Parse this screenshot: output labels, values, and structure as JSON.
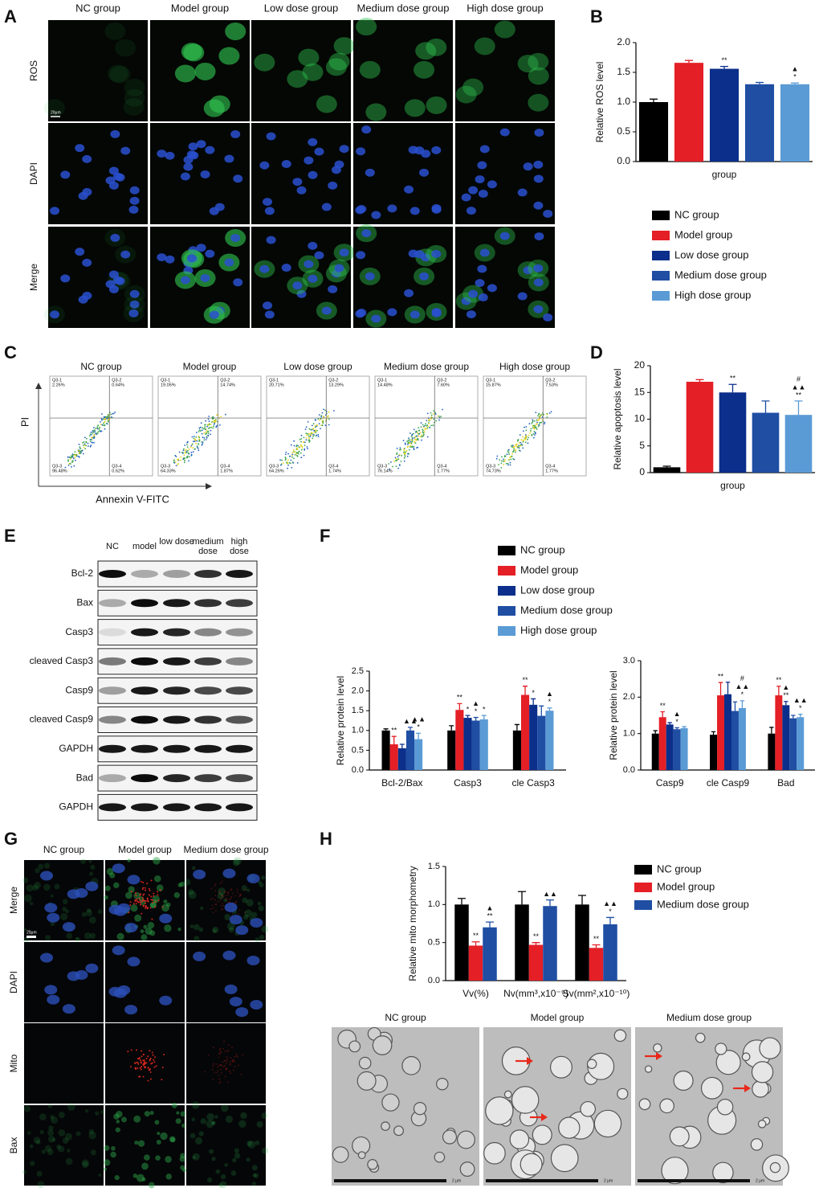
{
  "panel_labels": [
    "A",
    "B",
    "C",
    "D",
    "E",
    "F",
    "G",
    "H"
  ],
  "panel_A": {
    "columns": [
      "NC group",
      "Model group",
      "Low dose group",
      "Medium dose group",
      "High dose group"
    ],
    "rows": [
      "ROS",
      "DAPI",
      "Merge"
    ],
    "scale_bar": "20μm"
  },
  "panel_C": {
    "y_axis": "PI",
    "x_axis": "Annexin V-FITC",
    "plots": [
      {
        "title": "NC group",
        "quadrants": [
          {
            "name": "Q3-1",
            "pct": "2.26%"
          },
          {
            "name": "Q3-2",
            "pct": "0.64%"
          },
          {
            "name": "Q3-3",
            "pct": "96.48%"
          },
          {
            "name": "Q3-4",
            "pct": "0.62%"
          }
        ]
      },
      {
        "title": "Model group",
        "quadrants": [
          {
            "name": "Q3-1",
            "pct": "19.05%"
          },
          {
            "name": "Q3-2",
            "pct": "14.74%"
          },
          {
            "name": "Q3-3",
            "pct": "64.33%"
          },
          {
            "name": "Q3-4",
            "pct": "1.87%"
          }
        ]
      },
      {
        "title": "Low dose group",
        "quadrants": [
          {
            "name": "Q3-1",
            "pct": "20.71%"
          },
          {
            "name": "Q3-2",
            "pct": "13.29%"
          },
          {
            "name": "Q3-3",
            "pct": "64.26%"
          },
          {
            "name": "Q3-4",
            "pct": "1.74%"
          }
        ]
      },
      {
        "title": "Medium dose group",
        "quadrants": [
          {
            "name": "Q3-1",
            "pct": "14.48%"
          },
          {
            "name": "Q3-2",
            "pct": "7.60%"
          },
          {
            "name": "Q3-3",
            "pct": "76.14%"
          },
          {
            "name": "Q3-4",
            "pct": "1.77%"
          }
        ]
      },
      {
        "title": "High dose group",
        "quadrants": [
          {
            "name": "Q3-1",
            "pct": "15.87%"
          },
          {
            "name": "Q3-2",
            "pct": "7.53%"
          },
          {
            "name": "Q3-3",
            "pct": "74.73%"
          },
          {
            "name": "Q3-4",
            "pct": "1.77%"
          }
        ]
      }
    ]
  },
  "panel_E": {
    "columns": [
      "NC",
      "model",
      "low dose",
      "medium dose",
      "high dose"
    ],
    "rows": [
      "Bcl-2",
      "Bax",
      "Casp3",
      "cleaved Casp3",
      "Casp9",
      "cleaved Casp9",
      "GAPDH",
      "Bad",
      "GAPDH"
    ]
  },
  "panel_G": {
    "columns": [
      "NC group",
      "Model group",
      "Medium dose group"
    ],
    "rows": [
      "Merge",
      "DAPI",
      "Mito",
      "Bax"
    ],
    "scale_bar": "20μm"
  },
  "panel_H_images": {
    "columns": [
      "NC group",
      "Model group",
      "Medium dose group"
    ],
    "scale_bar": "2 μm"
  },
  "chart_data": [
    {
      "type": "bar",
      "y_label": "Relative ROS  level",
      "categories": [
        "group"
      ],
      "ylim": [
        0,
        2
      ],
      "yticks": [
        {
          "value": 0,
          "label": "0.0"
        },
        0.5,
        {
          "value": 1,
          "label": "1.0"
        },
        1.5,
        {
          "value": 2,
          "label": "2.0"
        }
      ],
      "series": [
        {
          "name": "NC group",
          "color": "#000000",
          "values": [
            1.0
          ],
          "errors": [
            0.05
          ]
        },
        {
          "name": "Model group",
          "color": "#e41f26",
          "values": [
            1.66
          ],
          "errors": [
            0.04
          ]
        },
        {
          "name": "Low dose group",
          "color": "#0b2f8a",
          "values": [
            1.56
          ],
          "errors": [
            0.04
          ],
          "sig": [
            [
              "**"
            ]
          ]
        },
        {
          "name": "Medium dose group",
          "color": "#1f4ea3",
          "values": [
            1.3
          ],
          "errors": [
            0.03
          ]
        },
        {
          "name": "High dose group",
          "color": "#5a9bd5",
          "values": [
            1.3
          ],
          "errors": [
            0.02
          ],
          "sig": [
            [
              "▲",
              "*"
            ]
          ]
        }
      ]
    },
    {
      "type": "bar",
      "y_label": "Relative apoptosis level",
      "categories": [
        "group"
      ],
      "ylim": [
        0,
        20
      ],
      "yticks": [
        0,
        5,
        10,
        15,
        20
      ],
      "series": [
        {
          "color": "#000000",
          "values": [
            1.0
          ],
          "errors": [
            0.2
          ]
        },
        {
          "color": "#e41f26",
          "values": [
            17.0
          ],
          "errors": [
            0.4
          ]
        },
        {
          "color": "#0b2f8a",
          "values": [
            15.0
          ],
          "errors": [
            1.5
          ],
          "sig": [
            [
              "**"
            ]
          ]
        },
        {
          "color": "#1f4ea3",
          "values": [
            11.2
          ],
          "errors": [
            2.2
          ]
        },
        {
          "color": "#5a9bd5",
          "values": [
            10.8
          ],
          "errors": [
            2.6
          ],
          "sig": [
            [
              "#",
              "▲▲",
              "**"
            ]
          ]
        }
      ]
    },
    {
      "type": "bar",
      "y_label": "Relative protein level",
      "categories": [
        "Bcl-2/Bax",
        "Casp3",
        "cle Casp3"
      ],
      "ylim": [
        0,
        2.5
      ],
      "yticks": [
        {
          "value": 0,
          "label": "0.0"
        },
        0.5,
        {
          "value": 1,
          "label": "1.0"
        },
        1.5,
        {
          "value": 2,
          "label": "2.0"
        },
        2.5
      ],
      "series": [
        {
          "name": "NC group",
          "color": "#000000",
          "values": [
            1.0,
            1.0,
            1.0
          ],
          "errors": [
            0.04,
            0.12,
            0.15
          ]
        },
        {
          "name": "Model group",
          "color": "#e41f26",
          "values": [
            0.65,
            1.52,
            1.9
          ],
          "errors": [
            0.2,
            0.16,
            0.22
          ],
          "sig": [
            [
              "**"
            ],
            [
              "**"
            ],
            [
              "**"
            ]
          ]
        },
        {
          "name": "Low dose group",
          "color": "#0b2f8a",
          "values": [
            0.55,
            1.32,
            1.65
          ],
          "errors": [
            0.1,
            0.06,
            0.15
          ],
          "sig": [
            null,
            [
              "*"
            ],
            [
              "*"
            ]
          ]
        },
        {
          "name": "Medium dose group",
          "color": "#1f4ea3",
          "values": [
            1.0,
            1.25,
            1.37
          ],
          "errors": [
            0.08,
            0.08,
            0.25
          ],
          "sig": [
            [
              "▲▲"
            ],
            [
              "▲",
              "*"
            ],
            null
          ]
        },
        {
          "name": "High dose group",
          "color": "#5a9bd5",
          "values": [
            0.78,
            1.28,
            1.5
          ],
          "errors": [
            0.15,
            0.1,
            0.07
          ],
          "sig": [
            [
              "▲▲",
              "*"
            ],
            [
              "*"
            ],
            [
              "▲",
              "*"
            ]
          ]
        }
      ]
    },
    {
      "type": "bar",
      "y_label": "Relative protein level",
      "categories": [
        "Casp9",
        "cle Casp9",
        "Bad"
      ],
      "ylim": [
        0,
        3
      ],
      "yticks": [
        {
          "value": 0,
          "label": "0.0"
        },
        {
          "value": 1,
          "label": "1.0"
        },
        {
          "value": 2,
          "label": "2.0"
        },
        {
          "value": 3,
          "label": "3.0"
        }
      ],
      "series": [
        {
          "color": "#000000",
          "values": [
            1.0,
            0.97,
            1.0
          ],
          "errors": [
            0.08,
            0.08,
            0.17
          ]
        },
        {
          "color": "#e41f26",
          "values": [
            1.45,
            2.05,
            2.05
          ],
          "errors": [
            0.15,
            0.35,
            0.25
          ],
          "sig": [
            [
              "**"
            ],
            [
              "**"
            ],
            [
              "**"
            ]
          ]
        },
        {
          "color": "#0b2f8a",
          "values": [
            1.25,
            2.08,
            1.78
          ],
          "errors": [
            0.05,
            0.33,
            0.1
          ],
          "sig": [
            null,
            null,
            [
              "▲",
              "**"
            ]
          ]
        },
        {
          "color": "#1f4ea3",
          "values": [
            1.12,
            1.62,
            1.42
          ],
          "errors": [
            0.04,
            0.25,
            0.08
          ],
          "sig": [
            [
              "▲",
              "*"
            ],
            null,
            null
          ]
        },
        {
          "color": "#5a9bd5",
          "values": [
            1.15,
            1.7,
            1.45
          ],
          "errors": [
            0.04,
            0.2,
            0.08
          ],
          "sig": [
            null,
            [
              "#",
              "▲▲",
              "*"
            ],
            [
              "▲▲",
              "*"
            ]
          ]
        }
      ]
    },
    {
      "type": "bar",
      "y_label": "Relative mito morphometry",
      "categories": [
        "Vv(%)",
        "Nv(mm³,x10⁻⁹)",
        "Sv(mm²,x10⁻¹⁰)"
      ],
      "ylim": [
        0,
        1.5
      ],
      "yticks": [
        {
          "value": 0,
          "label": "0.0"
        },
        0.5,
        {
          "value": 1,
          "label": "1.0"
        },
        1.5
      ],
      "series": [
        {
          "name": "NC group",
          "color": "#000000",
          "values": [
            1.0,
            1.0,
            1.0
          ],
          "errors": [
            0.08,
            0.17,
            0.12
          ]
        },
        {
          "name": "Model group",
          "color": "#e41f26",
          "values": [
            0.46,
            0.47,
            0.43
          ],
          "errors": [
            0.05,
            0.03,
            0.04
          ],
          "sig": [
            [
              "**"
            ],
            [
              "**"
            ],
            [
              "**"
            ]
          ]
        },
        {
          "name": "Medium dose group",
          "color": "#1f4ea3",
          "values": [
            0.7,
            0.98,
            0.74
          ],
          "errors": [
            0.07,
            0.08,
            0.09
          ],
          "sig": [
            [
              "▲",
              "**"
            ],
            [
              "▲▲"
            ],
            [
              "▲▲",
              "*"
            ]
          ]
        }
      ]
    }
  ]
}
